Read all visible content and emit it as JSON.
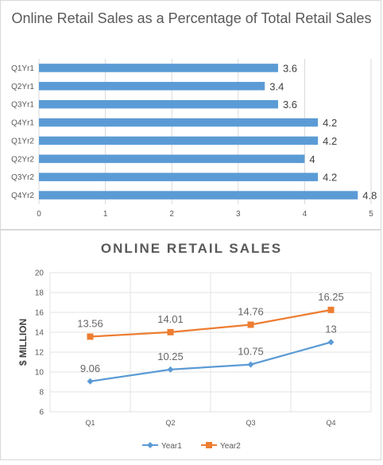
{
  "chart_data": [
    {
      "type": "bar",
      "orientation": "horizontal",
      "title": "Online Retail Sales as a Percentage of Total Retail Sales",
      "categories": [
        "Q1Yr1",
        "Q2Yr1",
        "Q3Yr1",
        "Q4Yr1",
        "Q1Yr2",
        "Q2Yr2",
        "Q3Yr2",
        "Q4Yr2"
      ],
      "values": [
        3.6,
        3.4,
        3.6,
        4.2,
        4.2,
        4,
        4.2,
        4.8
      ],
      "data_labels": [
        "3.6",
        "3.4",
        "3.6",
        "4.2",
        "4.2",
        "4",
        "4.2",
        "4.8"
      ],
      "xlim": [
        0,
        5
      ],
      "xticks": [
        "0",
        "1",
        "2",
        "3",
        "4",
        "5"
      ],
      "grid": true,
      "legend": "none",
      "color": "#5B9BD5"
    },
    {
      "type": "line",
      "title": "ONLINE RETAIL SALES",
      "ylabel": "$ MILLION",
      "categories": [
        "Q1",
        "Q2",
        "Q3",
        "Q4"
      ],
      "series": [
        {
          "name": "Year1",
          "values": [
            9.06,
            10.25,
            10.75,
            13
          ],
          "labels": [
            "9.06",
            "10.25",
            "10.75",
            "13"
          ],
          "color": "#5B9BD5",
          "marker": "diamond"
        },
        {
          "name": "Year2",
          "values": [
            13.56,
            14.01,
            14.76,
            16.25
          ],
          "labels": [
            "13.56",
            "14.01",
            "14.76",
            "16.25"
          ],
          "color": "#ED7D31",
          "marker": "square"
        }
      ],
      "ylim": [
        6,
        20
      ],
      "yticks": [
        "6",
        "8",
        "10",
        "12",
        "14",
        "16",
        "18",
        "20"
      ],
      "grid": true,
      "legend": "bottom"
    }
  ]
}
